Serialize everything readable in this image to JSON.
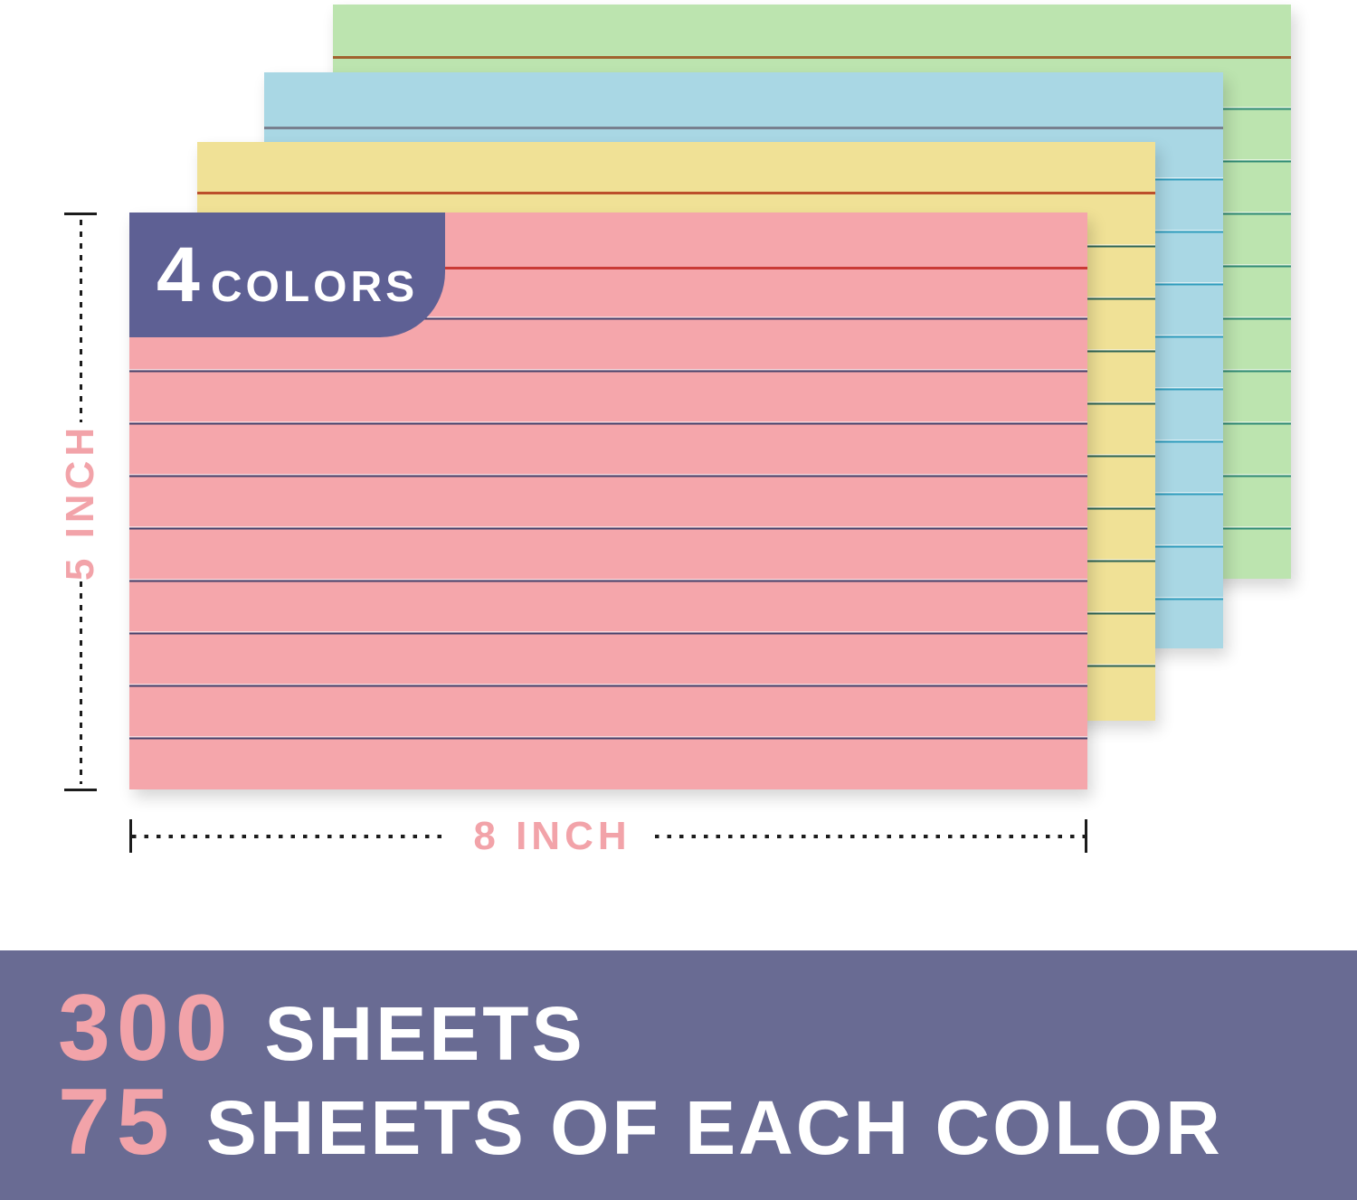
{
  "product": {
    "badge": {
      "count": "4",
      "label": "COLORS"
    },
    "cards": [
      {
        "name": "green-card",
        "color": "#bce4af"
      },
      {
        "name": "blue-card",
        "color": "#a9d7e4"
      },
      {
        "name": "yellow-card",
        "color": "#f0e196"
      },
      {
        "name": "pink-card",
        "color": "#f5a6ab"
      }
    ]
  },
  "dimensions": {
    "height": "5 INCH",
    "width": "8 INCH"
  },
  "banner": {
    "rows": [
      {
        "number": "300",
        "text": "SHEETS"
      },
      {
        "number": "75",
        "text": "SHEETS OF EACH COLOR"
      }
    ]
  },
  "colors": {
    "page-bg": "#ffffff",
    "banner-bg": "#696b93",
    "badge-bg": "#5e6094",
    "accent-pink": "#f2a3a9",
    "text-white": "#ffffff",
    "dim-line": "#1c1c1c",
    "card-green": "#bce4af",
    "card-green-line": "#2e8a74",
    "card-green-head": "#a0622f",
    "card-blue": "#a9d7e4",
    "card-blue-line": "#2e9cbd",
    "card-blue-head": "#78808f",
    "card-yellow": "#f0e196",
    "card-yellow-line": "#2b6355",
    "card-yellow-head": "#bb4f2b",
    "card-pink": "#f5a6ab",
    "card-pink-line": "#44406a",
    "card-pink-hi": "#f8d9dd",
    "card-pink-head": "#c93a36"
  }
}
